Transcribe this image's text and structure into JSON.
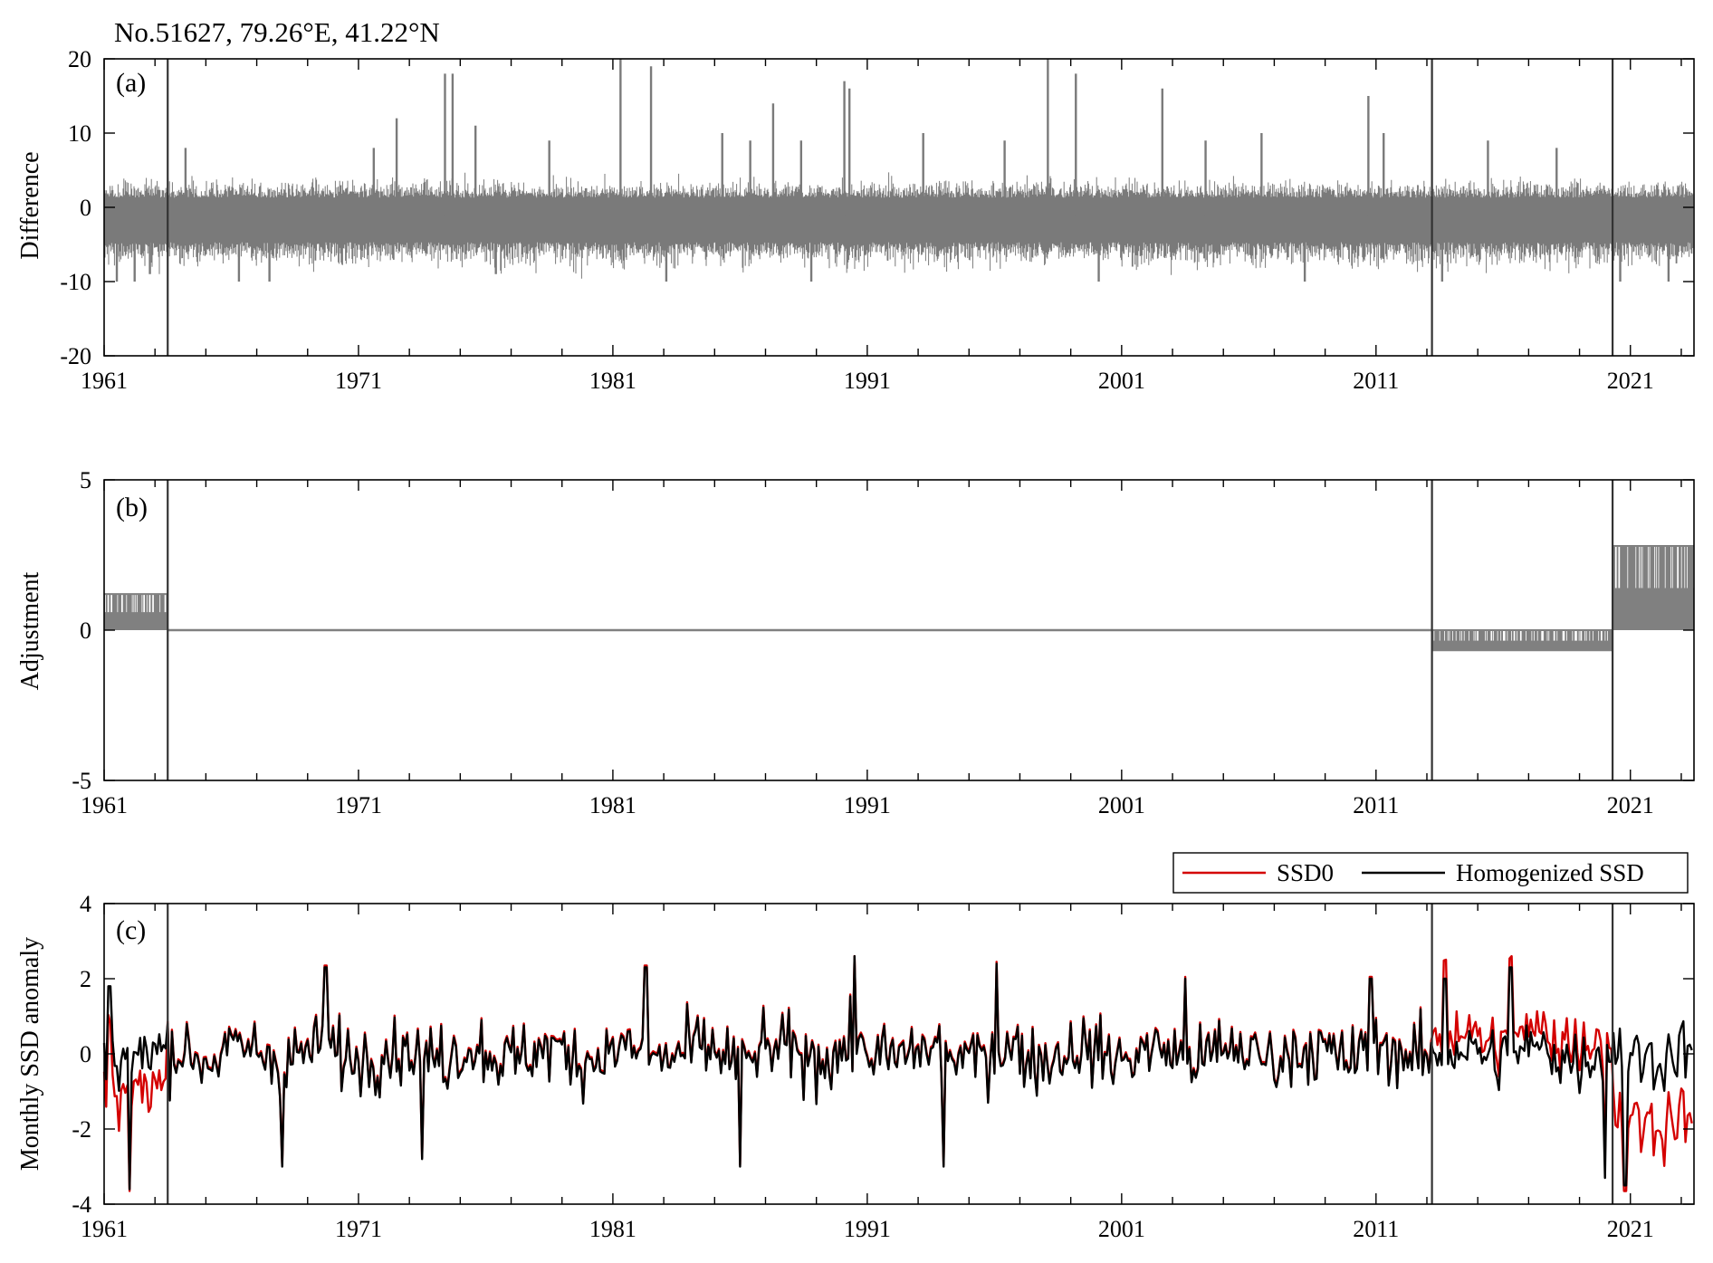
{
  "title": "No.51627, 79.26°E, 41.22°N",
  "colors": {
    "difference": "#7a7a7a",
    "adjustment": "#808080",
    "ssd0": "#d40000",
    "homogenized": "#000000",
    "breakpoint": "#333333"
  },
  "chart_data": [
    {
      "type": "line",
      "panel_label": "(a)",
      "title": "",
      "xlabel": "",
      "ylabel": "Difference",
      "xlim": [
        1961,
        2023.5
      ],
      "ylim": [
        -20,
        20
      ],
      "x_ticks": [
        "1961",
        "1971",
        "1981",
        "1991",
        "2001",
        "2011",
        "2021"
      ],
      "y_ticks": [
        "-20",
        "-10",
        "0",
        "10",
        "20"
      ],
      "grid": false,
      "breakpoints": [
        1963.5,
        2013.2,
        2020.3
      ],
      "series": [
        {
          "values_summary": "daily difference series oscillating roughly between -10 and +5 around -1 to -2",
          "band": {
            "low": -7,
            "high": 3,
            "center": -1.2
          },
          "spikes": [
            [
              1961.5,
              -10
            ],
            [
              1962.2,
              -10
            ],
            [
              1962.8,
              -9
            ],
            [
              1964.2,
              8
            ],
            [
              1966.3,
              -10
            ],
            [
              1967.5,
              -10
            ],
            [
              1971.6,
              8
            ],
            [
              1972.5,
              12
            ],
            [
              1974.4,
              18
            ],
            [
              1974.7,
              18
            ],
            [
              1975.6,
              11
            ],
            [
              1976.4,
              -9
            ],
            [
              1978.5,
              9
            ],
            [
              1981.3,
              20
            ],
            [
              1982.5,
              19
            ],
            [
              1983.1,
              -10
            ],
            [
              1985.3,
              10
            ],
            [
              1986.4,
              9
            ],
            [
              1987.3,
              14
            ],
            [
              1988.4,
              9
            ],
            [
              1988.8,
              -10
            ],
            [
              1990.1,
              17
            ],
            [
              1990.3,
              16
            ],
            [
              1993.2,
              10
            ],
            [
              1996.4,
              9
            ],
            [
              1998.1,
              20
            ],
            [
              1999.2,
              18
            ],
            [
              2000.1,
              -10
            ],
            [
              2002.6,
              16
            ],
            [
              2004.3,
              9
            ],
            [
              2006.5,
              10
            ],
            [
              2008.2,
              -10
            ],
            [
              2010.7,
              15
            ],
            [
              2011.3,
              10
            ],
            [
              2013.6,
              -10
            ],
            [
              2015.4,
              9
            ],
            [
              2018.1,
              8
            ],
            [
              2020.6,
              -10
            ],
            [
              2022.5,
              -10
            ]
          ]
        }
      ]
    },
    {
      "type": "line",
      "panel_label": "(b)",
      "title": "",
      "xlabel": "",
      "ylabel": "Adjustment",
      "xlim": [
        1961,
        2023.5
      ],
      "ylim": [
        -5,
        5
      ],
      "x_ticks": [
        "1961",
        "1971",
        "1981",
        "1991",
        "2001",
        "2011",
        "2021"
      ],
      "y_ticks": [
        "-5",
        "0",
        "5"
      ],
      "grid": false,
      "breakpoints": [
        1963.5,
        2013.2,
        2020.3
      ],
      "series": [
        {
          "segments": [
            {
              "x": [
                1961,
                1963.5
              ],
              "low": 0.0,
              "high": 1.2
            },
            {
              "x": [
                1963.5,
                2013.2
              ],
              "low": 0.0,
              "high": 0.0
            },
            {
              "x": [
                2013.2,
                2020.3
              ],
              "low": -0.7,
              "high": 0.0
            },
            {
              "x": [
                2020.3,
                2023.5
              ],
              "low": 0.0,
              "high": 2.8
            }
          ]
        }
      ]
    },
    {
      "type": "line",
      "panel_label": "(c)",
      "title": "",
      "xlabel": "",
      "ylabel": "Monthly SSD anomaly",
      "xlim": [
        1961,
        2023.5
      ],
      "ylim": [
        -4,
        4
      ],
      "x_ticks": [
        "1961",
        "1971",
        "1981",
        "1991",
        "2001",
        "2011",
        "2021"
      ],
      "y_ticks": [
        "-4",
        "-2",
        "0",
        "2",
        "4"
      ],
      "grid": false,
      "legend_position": "top-right, above plot",
      "breakpoints": [
        1963.5,
        2013.2,
        2020.3
      ],
      "series": [
        {
          "name": "SSD0",
          "values_summary": "monthly anomaly series; differs from homogenized before 1963.5 (lower), 2013.2–2020.3 (higher), after 2020.3 (lower)"
        },
        {
          "name": "Homogenized SSD",
          "values_summary": "monthly anomaly series between about -3.3 and +2.6"
        }
      ],
      "annotations": [
        [
          1961.2,
          1.8
        ],
        [
          1962.0,
          -3.6
        ],
        [
          1968.0,
          -3.0
        ],
        [
          1969.7,
          2.3
        ],
        [
          1973.5,
          -2.8
        ],
        [
          1982.3,
          2.3
        ],
        [
          1986.0,
          -3.0
        ],
        [
          1990.5,
          2.6
        ],
        [
          1994.0,
          -3.0
        ],
        [
          1996.1,
          2.4
        ],
        [
          2003.5,
          2.0
        ],
        [
          2010.8,
          2.0
        ],
        [
          2013.7,
          2.0
        ],
        [
          2016.3,
          2.3
        ],
        [
          2020.0,
          -3.3
        ],
        [
          2020.8,
          -3.5
        ]
      ]
    }
  ]
}
